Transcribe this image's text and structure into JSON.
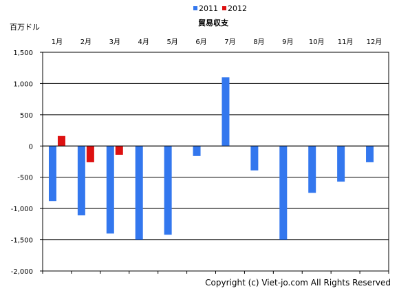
{
  "chart_data": {
    "type": "bar",
    "title": "貿易収支",
    "ylabel": "百万ドル",
    "xlabel": "",
    "categories": [
      "1月",
      "2月",
      "3月",
      "4月",
      "5月",
      "6月",
      "7月",
      "8月",
      "9月",
      "10月",
      "11月",
      "12月"
    ],
    "series": [
      {
        "name": "2011",
        "color": "#3377ee",
        "values": [
          -880,
          -1110,
          -1400,
          -1500,
          -1420,
          -160,
          1100,
          -390,
          -1500,
          -750,
          -570,
          -260
        ]
      },
      {
        "name": "2012",
        "color": "#dd1111",
        "values": [
          160,
          -260,
          -140,
          null,
          null,
          null,
          null,
          null,
          null,
          null,
          null,
          null
        ]
      }
    ],
    "ylim": [
      -2000,
      1500
    ],
    "yticks": [
      1500,
      1000,
      500,
      0,
      -500,
      -1000,
      -1500,
      -2000
    ],
    "ytick_labels": [
      "1,500",
      "1,000",
      "500",
      "0",
      "-500",
      "-1,000",
      "-1,500",
      "-2,000"
    ],
    "grid": true,
    "legend_position": "top-center",
    "category_labels_position": "top"
  },
  "copyright": "Copyright (c) Viet-jo.com All Rights Reserved"
}
